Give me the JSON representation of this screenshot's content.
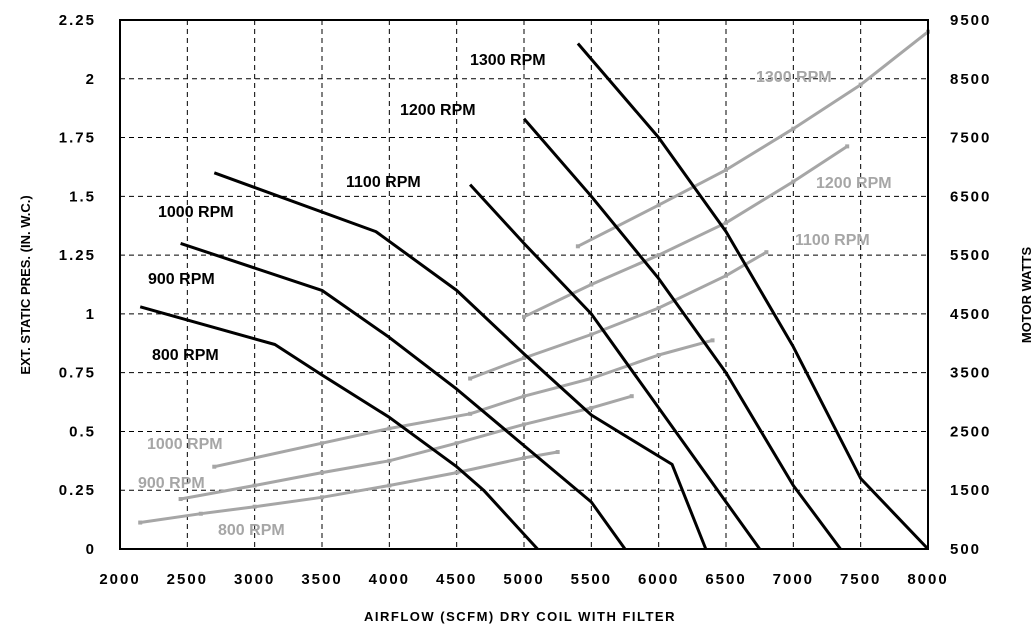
{
  "chart_data": {
    "type": "line",
    "xlabel": "AIRFLOW (SCFM) DRY COIL WITH FILTER",
    "ylabel": "EXT. STATIC PRES. (IN. W.C.)",
    "y2label": "MOTOR WATTS",
    "xlim": [
      2000,
      8000
    ],
    "ylim": [
      0,
      2.25
    ],
    "y2lim": [
      500,
      9500
    ],
    "xticks": [
      "2000",
      "2500",
      "3000",
      "3500",
      "4000",
      "4500",
      "5000",
      "5500",
      "6000",
      "6500",
      "7000",
      "7500",
      "8000"
    ],
    "yticks": [
      "0",
      "0.25",
      "0.5",
      "0.75",
      "1",
      "1.25",
      "1.5",
      "1.75",
      "2",
      "2.25"
    ],
    "y2ticks": [
      "500",
      "1500",
      "2500",
      "3500",
      "4500",
      "5500",
      "6500",
      "7500",
      "8500",
      "9500"
    ],
    "grid": true,
    "colors": {
      "pressure": "#000000",
      "watts": "#a6a6a6"
    },
    "pressure_series": [
      {
        "name": "800 RPM",
        "points": [
          [
            2150,
            1.03
          ],
          [
            3150,
            0.87
          ],
          [
            3500,
            0.74
          ],
          [
            4000,
            0.56
          ],
          [
            4500,
            0.35
          ],
          [
            4700,
            0.25
          ],
          [
            5100,
            0.0
          ]
        ]
      },
      {
        "name": "900 RPM",
        "points": [
          [
            2450,
            1.3
          ],
          [
            3500,
            1.1
          ],
          [
            4000,
            0.9
          ],
          [
            4500,
            0.68
          ],
          [
            5000,
            0.44
          ],
          [
            5500,
            0.2
          ],
          [
            5750,
            0.0
          ]
        ]
      },
      {
        "name": "1000 RPM",
        "points": [
          [
            2700,
            1.6
          ],
          [
            3900,
            1.35
          ],
          [
            4500,
            1.1
          ],
          [
            5000,
            0.83
          ],
          [
            5500,
            0.57
          ],
          [
            6100,
            0.36
          ],
          [
            6350,
            0.0
          ]
        ]
      },
      {
        "name": "1100 RPM",
        "points": [
          [
            4600,
            1.55
          ],
          [
            5000,
            1.3
          ],
          [
            5500,
            1.0
          ],
          [
            6000,
            0.6
          ],
          [
            6500,
            0.2
          ],
          [
            6750,
            0.0
          ]
        ]
      },
      {
        "name": "1200 RPM",
        "points": [
          [
            5000,
            1.83
          ],
          [
            5500,
            1.5
          ],
          [
            6000,
            1.15
          ],
          [
            6500,
            0.75
          ],
          [
            7000,
            0.27
          ],
          [
            7350,
            0.0
          ]
        ]
      },
      {
        "name": "1300 RPM",
        "points": [
          [
            5400,
            2.15
          ],
          [
            6000,
            1.75
          ],
          [
            6500,
            1.35
          ],
          [
            7000,
            0.86
          ],
          [
            7500,
            0.3
          ],
          [
            8000,
            0.0
          ]
        ]
      }
    ],
    "watts_series": [
      {
        "name": "800 RPM",
        "points": [
          [
            2150,
            950
          ],
          [
            2600,
            1100
          ],
          [
            3000,
            1220
          ],
          [
            3500,
            1380
          ],
          [
            4000,
            1580
          ],
          [
            4500,
            1800
          ],
          [
            5000,
            2050
          ],
          [
            5250,
            2150
          ]
        ]
      },
      {
        "name": "900 RPM",
        "points": [
          [
            2450,
            1350
          ],
          [
            3000,
            1580
          ],
          [
            3500,
            1800
          ],
          [
            4000,
            2000
          ],
          [
            4500,
            2300
          ],
          [
            5000,
            2620
          ],
          [
            5500,
            2900
          ],
          [
            5800,
            3100
          ]
        ]
      },
      {
        "name": "1000 RPM",
        "points": [
          [
            2700,
            1900
          ],
          [
            3500,
            2300
          ],
          [
            4000,
            2550
          ],
          [
            4600,
            2800
          ],
          [
            5000,
            3100
          ],
          [
            5500,
            3400
          ],
          [
            6000,
            3800
          ],
          [
            6400,
            4050
          ]
        ]
      },
      {
        "name": "1100 RPM",
        "points": [
          [
            4600,
            3400
          ],
          [
            5000,
            3750
          ],
          [
            5500,
            4150
          ],
          [
            6000,
            4600
          ],
          [
            6500,
            5150
          ],
          [
            6800,
            5550
          ]
        ]
      },
      {
        "name": "1200 RPM",
        "points": [
          [
            5000,
            4450
          ],
          [
            5500,
            5000
          ],
          [
            6000,
            5500
          ],
          [
            6500,
            6050
          ],
          [
            7000,
            6750
          ],
          [
            7400,
            7350
          ]
        ]
      },
      {
        "name": "1300 RPM",
        "points": [
          [
            5400,
            5650
          ],
          [
            6000,
            6350
          ],
          [
            6500,
            6950
          ],
          [
            7000,
            7650
          ],
          [
            7500,
            8400
          ],
          [
            8000,
            9300
          ]
        ]
      }
    ]
  },
  "labels": {
    "pressure": [
      "1300 RPM",
      "1200 RPM",
      "1100 RPM",
      "1000 RPM",
      "900 RPM",
      "800 RPM"
    ],
    "watts": [
      "1300 RPM",
      "1200 RPM",
      "1100 RPM",
      "1000 RPM",
      "900 RPM",
      "800 RPM"
    ]
  }
}
